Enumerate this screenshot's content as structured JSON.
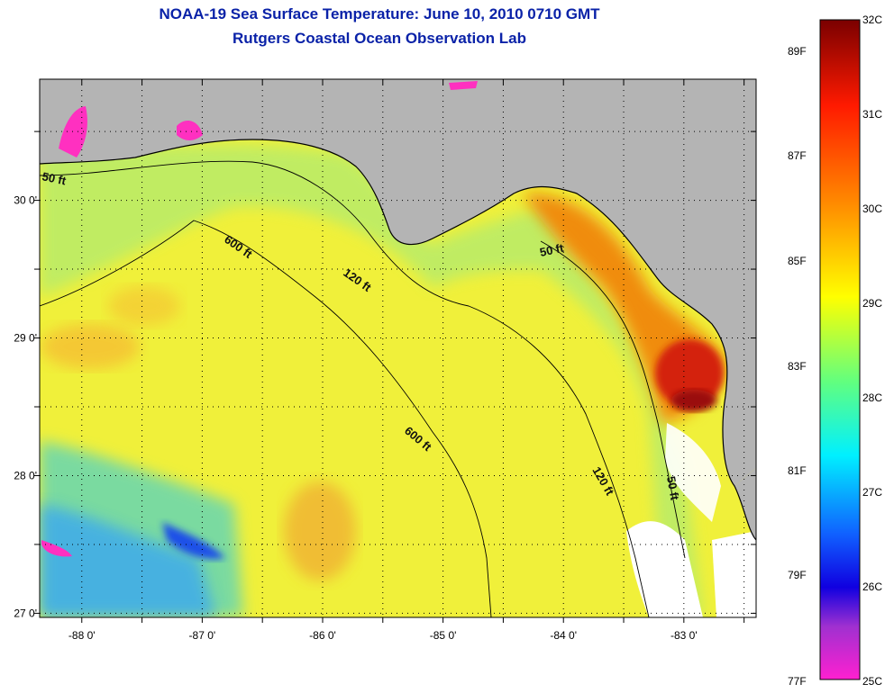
{
  "header": {
    "title": "NOAA-19 Sea Surface Temperature:  June 10, 2010 0710 GMT",
    "subtitle": "Rutgers Coastal Ocean Observation Lab"
  },
  "map": {
    "lon_range": [
      -88.35,
      -82.4
    ],
    "lat_range": [
      26.97,
      30.88
    ],
    "lon_ticks": [
      {
        "value": -88,
        "label": "-88 0'"
      },
      {
        "value": -87,
        "label": "-87 0'"
      },
      {
        "value": -86,
        "label": "-86 0'"
      },
      {
        "value": -85,
        "label": "-85 0'"
      },
      {
        "value": -84,
        "label": "-84 0'"
      },
      {
        "value": -83,
        "label": "-83 0'"
      }
    ],
    "lat_ticks": [
      {
        "value": 30,
        "label": "30 0'"
      },
      {
        "value": 29,
        "label": "29 0'"
      },
      {
        "value": 28,
        "label": "28 0'"
      },
      {
        "value": 27,
        "label": "27 0'"
      }
    ],
    "contour_labels": [
      "50 ft",
      "600 ft",
      "120 ft",
      "50 ft",
      "600 ft",
      "120 ft",
      "50 ft"
    ],
    "colors": {
      "land": "#b4b4b4",
      "ocean_base": "#f0f03a",
      "nearshore": "#b4f078",
      "cold_patch": "#3aa0ff",
      "warm_coast": "#ee8a10",
      "hot_core": "#cc1212",
      "cloud": "#ffffff",
      "grid": "#000000"
    }
  },
  "colorbar": {
    "celsius": [
      "32C",
      "31C",
      "30C",
      "29C",
      "28C",
      "27C",
      "26C",
      "25C"
    ],
    "fahrenheit": [
      "89F",
      "87F",
      "85F",
      "83F",
      "81F",
      "79F",
      "77F"
    ]
  }
}
